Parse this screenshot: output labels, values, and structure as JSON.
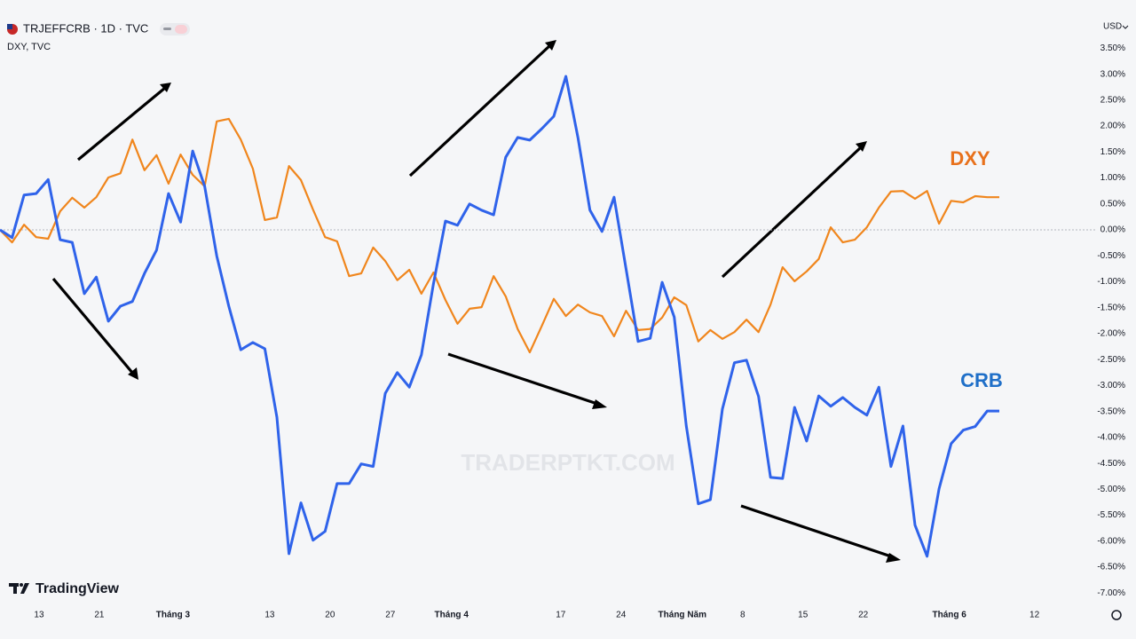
{
  "header": {
    "symbol": "TRJEFFCRB · 1D · TVC",
    "compare": "DXY, TVC",
    "currency": "USD"
  },
  "watermark": "TRADERPTKT.COM",
  "brand": "TradingView",
  "chart_data": {
    "type": "line",
    "series": [
      {
        "name": "CRB",
        "color": "#2f63ea",
        "values": [
          0.0,
          -0.15,
          0.67,
          0.7,
          0.97,
          -0.19,
          -0.24,
          -1.23,
          -0.91,
          -1.76,
          -1.47,
          -1.38,
          -0.84,
          -0.39,
          0.7,
          0.15,
          1.52,
          0.84,
          -0.5,
          -1.47,
          -2.31,
          -2.17,
          -2.29,
          -3.61,
          -6.24,
          -5.26,
          -5.98,
          -5.81,
          -4.89,
          -4.89,
          -4.51,
          -4.56,
          -3.15,
          -2.75,
          -3.03,
          -2.41,
          -1.04,
          0.17,
          0.09,
          0.5,
          0.38,
          0.29,
          1.4,
          1.78,
          1.73,
          1.95,
          2.19,
          2.96,
          1.78,
          0.38,
          -0.03,
          0.63,
          -0.75,
          -2.15,
          -2.09,
          -1.01,
          -1.68,
          -3.78,
          -5.28,
          -5.2,
          -3.45,
          -2.56,
          -2.51,
          -3.21,
          -4.77,
          -4.79,
          -3.42,
          -4.07,
          -3.2,
          -3.4,
          -3.23,
          -3.42,
          -3.57,
          -3.03,
          -4.56,
          -3.78,
          -5.69,
          -6.29,
          -4.99,
          -4.12,
          -3.86,
          -3.79,
          -3.49,
          -3.49
        ]
      },
      {
        "name": "DXY",
        "color": "#f0861d",
        "values": [
          0.0,
          -0.24,
          0.1,
          -0.14,
          -0.17,
          0.36,
          0.62,
          0.43,
          0.63,
          1.01,
          1.09,
          1.74,
          1.15,
          1.44,
          0.89,
          1.45,
          1.06,
          0.84,
          2.09,
          2.14,
          1.74,
          1.18,
          0.19,
          0.24,
          1.23,
          0.96,
          0.39,
          -0.14,
          -0.22,
          -0.89,
          -0.84,
          -0.34,
          -0.6,
          -0.97,
          -0.77,
          -1.23,
          -0.82,
          -1.35,
          -1.81,
          -1.52,
          -1.49,
          -0.89,
          -1.28,
          -1.91,
          -2.36,
          -1.85,
          -1.33,
          -1.66,
          -1.44,
          -1.59,
          -1.66,
          -2.05,
          -1.56,
          -1.93,
          -1.91,
          -1.69,
          -1.3,
          -1.45,
          -2.15,
          -1.93,
          -2.1,
          -1.97,
          -1.73,
          -1.97,
          -1.44,
          -0.72,
          -0.99,
          -0.8,
          -0.56,
          0.05,
          -0.24,
          -0.19,
          0.05,
          0.43,
          0.74,
          0.75,
          0.6,
          0.75,
          0.12,
          0.56,
          0.53,
          0.65,
          0.63,
          0.63
        ]
      }
    ],
    "xlim": [
      0,
      90.3
    ],
    "xticks": [
      {
        "value": 3.24,
        "label": "13"
      },
      {
        "value": 8.25,
        "label": "21"
      },
      {
        "value": 14.37,
        "label": "Tháng 3"
      },
      {
        "value": 22.4,
        "label": "13"
      },
      {
        "value": 27.41,
        "label": "20"
      },
      {
        "value": 32.42,
        "label": "27"
      },
      {
        "value": 37.5,
        "label": "Tháng 4"
      },
      {
        "value": 46.57,
        "label": "17"
      },
      {
        "value": 51.58,
        "label": "24"
      },
      {
        "value": 56.67,
        "label": "Tháng Năm"
      },
      {
        "value": 61.68,
        "label": "8"
      },
      {
        "value": 66.69,
        "label": "15"
      },
      {
        "value": 71.7,
        "label": "22"
      },
      {
        "value": 78.85,
        "label": "Tháng 6"
      },
      {
        "value": 85.92,
        "label": "12"
      }
    ],
    "ylim": [
      -7.2,
      4.43
    ],
    "yticks": [
      {
        "value": 3.5,
        "label": "3.50%"
      },
      {
        "value": 3.0,
        "label": "3.00%"
      },
      {
        "value": 2.5,
        "label": "2.50%"
      },
      {
        "value": 2.0,
        "label": "2.00%"
      },
      {
        "value": 1.5,
        "label": "1.50%"
      },
      {
        "value": 1.0,
        "label": "1.00%"
      },
      {
        "value": 0.5,
        "label": "0.50%"
      },
      {
        "value": 0,
        "label": "0.00%"
      },
      {
        "value": -0.5,
        "label": "-0.50%"
      },
      {
        "value": -1.0,
        "label": "-1.00%"
      },
      {
        "value": -1.5,
        "label": "-1.50%"
      },
      {
        "value": -2.0,
        "label": "-2.00%"
      },
      {
        "value": -2.5,
        "label": "-2.50%"
      },
      {
        "value": -3.0,
        "label": "-3.00%"
      },
      {
        "value": -3.5,
        "label": "-3.50%"
      },
      {
        "value": -4.0,
        "label": "-4.00%"
      },
      {
        "value": -4.5,
        "label": "-4.50%"
      },
      {
        "value": -5.0,
        "label": "-5.00%"
      },
      {
        "value": -5.5,
        "label": "-5.50%"
      },
      {
        "value": -6.0,
        "label": "-6.00%"
      },
      {
        "value": -6.5,
        "label": "-6.50%"
      },
      {
        "value": -7.0,
        "label": "-7.00%"
      }
    ]
  }
}
